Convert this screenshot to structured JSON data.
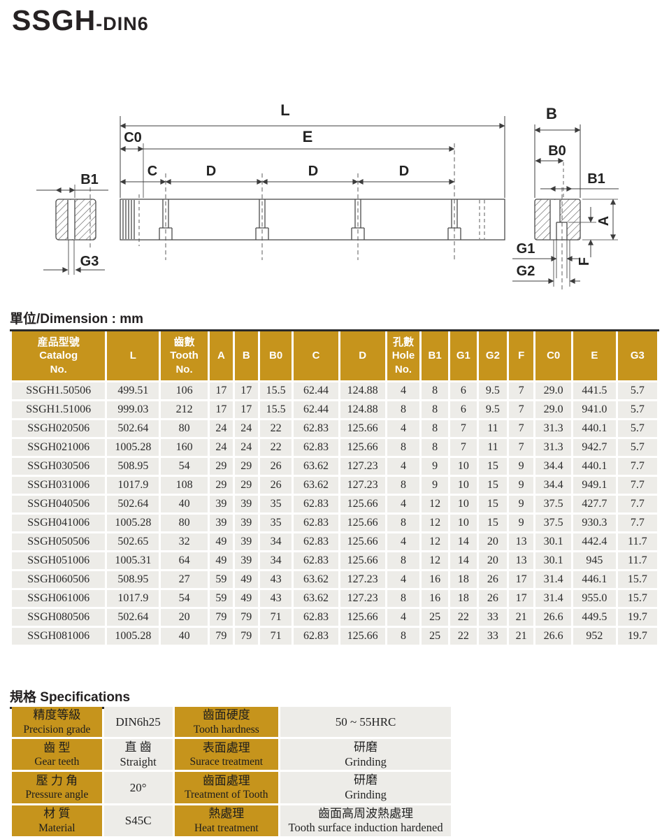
{
  "page": {
    "title": "SSGH",
    "title_suffix": "-DIN6"
  },
  "diagram": {
    "labels": {
      "L": "L",
      "E": "E",
      "C0": "C0",
      "C": "C",
      "D": "D",
      "B": "B",
      "B0": "B0",
      "B1": "B1",
      "A": "A",
      "F": "F",
      "G1": "G1",
      "G2": "G2",
      "G3": "G3"
    }
  },
  "dimension_table": {
    "unit_heading": "單位/Dimension : mm",
    "headers": [
      [
        "産品型號",
        "Catalog",
        "No."
      ],
      [
        "L"
      ],
      [
        "齒數",
        "Tooth",
        "No."
      ],
      [
        "A"
      ],
      [
        "B"
      ],
      [
        "B0"
      ],
      [
        "C"
      ],
      [
        "D"
      ],
      [
        "孔數",
        "Hole",
        "No."
      ],
      [
        "B1"
      ],
      [
        "G1"
      ],
      [
        "G2"
      ],
      [
        "F"
      ],
      [
        "C0"
      ],
      [
        "E"
      ],
      [
        "G3"
      ]
    ],
    "rows": [
      [
        "SSGH1.50506",
        "499.51",
        "106",
        "17",
        "17",
        "15.5",
        "62.44",
        "124.88",
        "4",
        "8",
        "6",
        "9.5",
        "7",
        "29.0",
        "441.5",
        "5.7"
      ],
      [
        "SSGH1.51006",
        "999.03",
        "212",
        "17",
        "17",
        "15.5",
        "62.44",
        "124.88",
        "8",
        "8",
        "6",
        "9.5",
        "7",
        "29.0",
        "941.0",
        "5.7"
      ],
      [
        "SSGH020506",
        "502.64",
        "80",
        "24",
        "24",
        "22",
        "62.83",
        "125.66",
        "4",
        "8",
        "7",
        "11",
        "7",
        "31.3",
        "440.1",
        "5.7"
      ],
      [
        "SSGH021006",
        "1005.28",
        "160",
        "24",
        "24",
        "22",
        "62.83",
        "125.66",
        "8",
        "8",
        "7",
        "11",
        "7",
        "31.3",
        "942.7",
        "5.7"
      ],
      [
        "SSGH030506",
        "508.95",
        "54",
        "29",
        "29",
        "26",
        "63.62",
        "127.23",
        "4",
        "9",
        "10",
        "15",
        "9",
        "34.4",
        "440.1",
        "7.7"
      ],
      [
        "SSGH031006",
        "1017.9",
        "108",
        "29",
        "29",
        "26",
        "63.62",
        "127.23",
        "8",
        "9",
        "10",
        "15",
        "9",
        "34.4",
        "949.1",
        "7.7"
      ],
      [
        "SSGH040506",
        "502.64",
        "40",
        "39",
        "39",
        "35",
        "62.83",
        "125.66",
        "4",
        "12",
        "10",
        "15",
        "9",
        "37.5",
        "427.7",
        "7.7"
      ],
      [
        "SSGH041006",
        "1005.28",
        "80",
        "39",
        "39",
        "35",
        "62.83",
        "125.66",
        "8",
        "12",
        "10",
        "15",
        "9",
        "37.5",
        "930.3",
        "7.7"
      ],
      [
        "SSGH050506",
        "502.65",
        "32",
        "49",
        "39",
        "34",
        "62.83",
        "125.66",
        "4",
        "12",
        "14",
        "20",
        "13",
        "30.1",
        "442.4",
        "11.7"
      ],
      [
        "SSGH051006",
        "1005.31",
        "64",
        "49",
        "39",
        "34",
        "62.83",
        "125.66",
        "8",
        "12",
        "14",
        "20",
        "13",
        "30.1",
        "945",
        "11.7"
      ],
      [
        "SSGH060506",
        "508.95",
        "27",
        "59",
        "49",
        "43",
        "63.62",
        "127.23",
        "4",
        "16",
        "18",
        "26",
        "17",
        "31.4",
        "446.1",
        "15.7"
      ],
      [
        "SSGH061006",
        "1017.9",
        "54",
        "59",
        "49",
        "43",
        "63.62",
        "127.23",
        "8",
        "16",
        "18",
        "26",
        "17",
        "31.4",
        "955.0",
        "15.7"
      ],
      [
        "SSGH080506",
        "502.64",
        "20",
        "79",
        "79",
        "71",
        "62.83",
        "125.66",
        "4",
        "25",
        "22",
        "33",
        "21",
        "26.6",
        "449.5",
        "19.7"
      ],
      [
        "SSGH081006",
        "1005.28",
        "40",
        "79",
        "79",
        "71",
        "62.83",
        "125.66",
        "8",
        "25",
        "22",
        "33",
        "21",
        "26.6",
        "952",
        "19.7"
      ]
    ]
  },
  "specifications": {
    "heading": "規格 Specifications",
    "rows": [
      {
        "cells": [
          {
            "kind": "label",
            "lines": [
              "精度等級",
              "Precision grade"
            ]
          },
          {
            "kind": "value",
            "lines": [
              "DIN6h25"
            ]
          },
          {
            "kind": "label",
            "lines": [
              "齒面硬度",
              "Tooth hardness"
            ]
          },
          {
            "kind": "value",
            "lines": [
              "50 ~ 55HRC"
            ]
          }
        ]
      },
      {
        "cells": [
          {
            "kind": "label",
            "lines": [
              "齒  型",
              "Gear teeth"
            ]
          },
          {
            "kind": "value",
            "lines": [
              "直 齒",
              "Straight"
            ]
          },
          {
            "kind": "label",
            "lines": [
              "表面處理",
              "Surace treatment"
            ]
          },
          {
            "kind": "value",
            "lines": [
              "研磨",
              "Grinding"
            ]
          }
        ]
      },
      {
        "cells": [
          {
            "kind": "label",
            "lines": [
              "壓 力 角",
              "Pressure angle"
            ]
          },
          {
            "kind": "value",
            "lines": [
              "20°"
            ]
          },
          {
            "kind": "label",
            "lines": [
              "齒面處理",
              "Treatment of Tooth"
            ]
          },
          {
            "kind": "value",
            "lines": [
              "研磨",
              "Grinding"
            ]
          }
        ]
      },
      {
        "cells": [
          {
            "kind": "label",
            "lines": [
              "材  質",
              "Material"
            ]
          },
          {
            "kind": "value",
            "lines": [
              "S45C"
            ]
          },
          {
            "kind": "label",
            "lines": [
              "熱處理",
              "Heat treatment"
            ]
          },
          {
            "kind": "value",
            "lines": [
              "齒面高周波熱處理",
              "Tooth surface induction hardened"
            ]
          }
        ]
      }
    ]
  },
  "colors": {
    "accent_gold": "#c6941c",
    "cell_gray": "#edece8",
    "line": "#4a4a4a"
  }
}
